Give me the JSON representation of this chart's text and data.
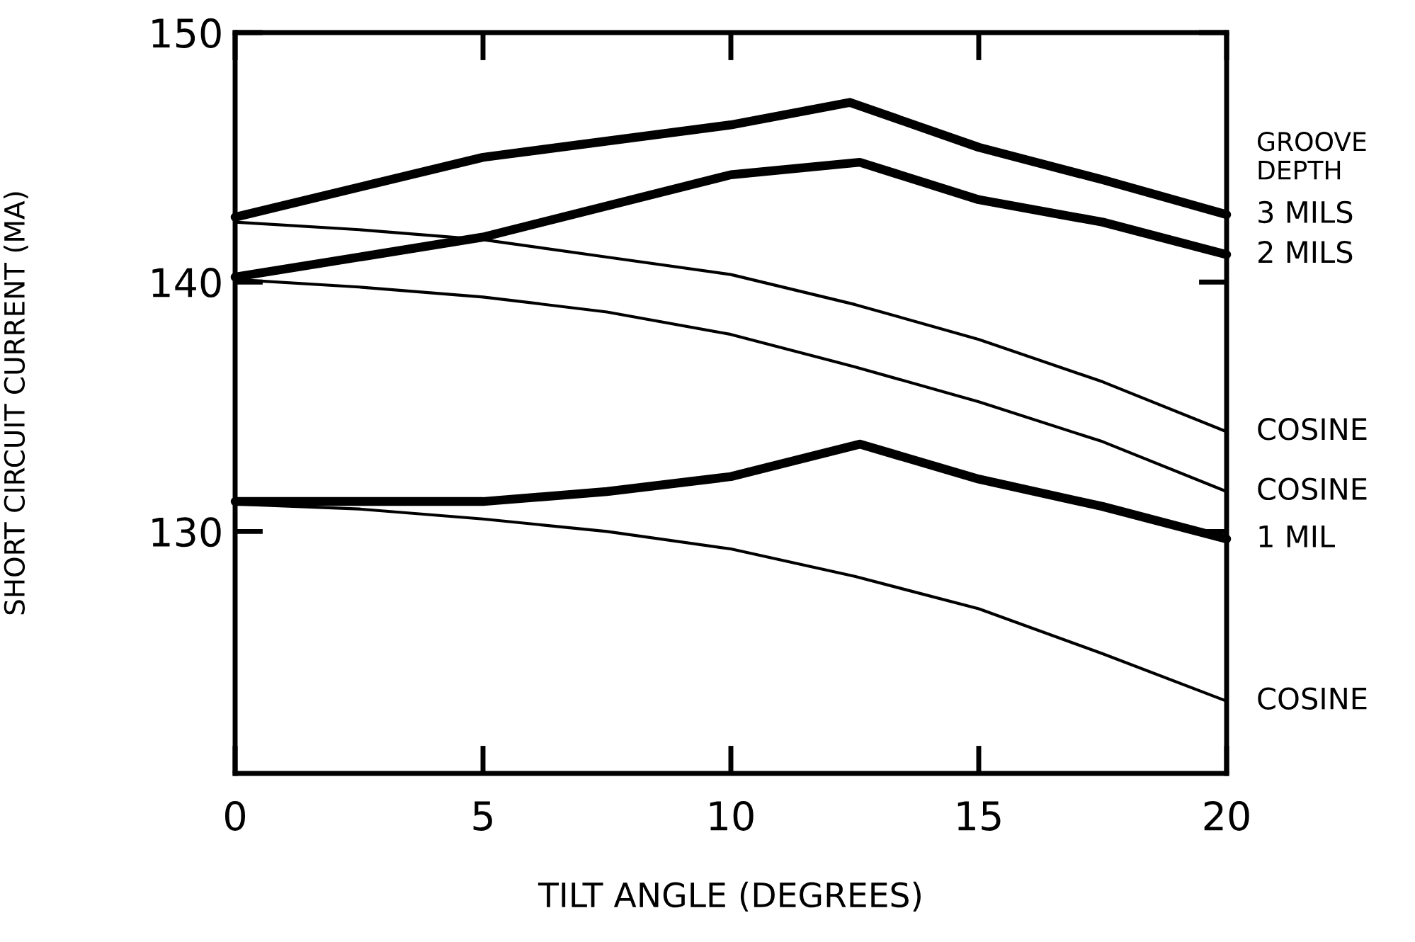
{
  "chart_data": {
    "type": "line",
    "xlabel": "TILT ANGLE (DEGREES)",
    "ylabel": "SHORT CIRCUIT CURRENT (MA)",
    "legend_title": "GROOVE\nDEPTH",
    "xlim": [
      0,
      20
    ],
    "xticks": [
      0,
      5,
      10,
      15,
      20
    ],
    "ylim": [
      120.3,
      150
    ],
    "yticks": [
      130,
      140,
      150
    ],
    "grid": false,
    "marker": "none",
    "line_style": "solid",
    "series": [
      {
        "name": "3 MILS",
        "color": "#000000",
        "x": [
          0,
          5,
          10,
          12.4,
          15,
          17.5,
          20
        ],
        "values": [
          142.6,
          145.0,
          146.3,
          147.2,
          145.4,
          144.1,
          142.7
        ]
      },
      {
        "name": "2 MILS",
        "color": "#000000",
        "x": [
          0,
          5,
          10,
          12.6,
          15,
          17.5,
          20
        ],
        "values": [
          140.2,
          141.8,
          144.3,
          144.8,
          143.3,
          142.4,
          141.1
        ]
      },
      {
        "name": "COSINE",
        "color": "#000000",
        "x": [
          0,
          2.5,
          5,
          7.5,
          10,
          12.5,
          15,
          17.5,
          20
        ],
        "values": [
          142.4,
          142.1,
          141.7,
          141.0,
          140.3,
          139.1,
          137.7,
          136.0,
          134.0
        ]
      },
      {
        "name": "COSINE",
        "color": "#000000",
        "x": [
          0,
          2.5,
          5,
          7.5,
          10,
          12.5,
          15,
          17.5,
          20
        ],
        "values": [
          140.1,
          139.8,
          139.4,
          138.8,
          137.9,
          136.6,
          135.2,
          133.6,
          131.6
        ]
      },
      {
        "name": "1 MIL",
        "color": "#000000",
        "x": [
          0,
          2.5,
          5,
          7.5,
          10,
          12.6,
          15,
          17.5,
          20
        ],
        "values": [
          131.2,
          131.2,
          131.2,
          131.6,
          132.2,
          133.5,
          132.1,
          131.0,
          129.7
        ]
      },
      {
        "name": "COSINE",
        "color": "#000000",
        "x": [
          0,
          2.5,
          5,
          7.5,
          10,
          12.5,
          15,
          17.5,
          20
        ],
        "values": [
          131.1,
          130.9,
          130.5,
          130.0,
          129.3,
          128.2,
          126.9,
          125.1,
          123.2
        ]
      }
    ]
  }
}
